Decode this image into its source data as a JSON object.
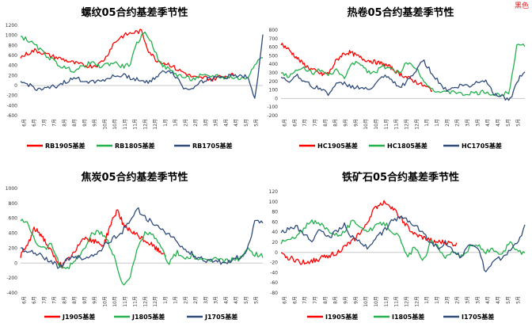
{
  "brand_text": "黑色",
  "palette": {
    "s1905": "#ff0000",
    "s1805": "#22b14c",
    "s1705": "#2f4b7c"
  },
  "chart_data": [
    {
      "type": "line",
      "title": "螺纹05合约基差季节性",
      "xticks": [
        "6月",
        "6月",
        "7月",
        "7月",
        "8月",
        "8月",
        "9月",
        "9月",
        "10月",
        "10月",
        "11月",
        "11月",
        "12月",
        "12月",
        "1月",
        "1月",
        "2月",
        "2月",
        "3月",
        "3月",
        "4月",
        "4月",
        "5月",
        "5月"
      ],
      "ylim": [
        -600,
        1200
      ],
      "yticks": [
        1200,
        1000,
        800,
        600,
        400,
        200,
        0,
        -200,
        -400,
        -600
      ],
      "legend_position": "bottom",
      "series": [
        {
          "name": "RB1905基差",
          "color": "#ff0000",
          "start": 0,
          "end": 0.88,
          "values": [
            560,
            640,
            700,
            660,
            600,
            560,
            520,
            470,
            430,
            400,
            390,
            420,
            560,
            820,
            960,
            1020,
            1060,
            1080,
            700,
            520,
            460,
            420,
            320,
            260,
            180,
            140,
            160,
            120,
            180,
            190,
            210
          ]
        },
        {
          "name": "RB1805基差",
          "color": "#22b14c",
          "start": 0,
          "end": 1.0,
          "values": [
            980,
            900,
            780,
            640,
            520,
            400,
            330,
            300,
            380,
            460,
            380,
            420,
            460,
            380,
            420,
            880,
            1080,
            760,
            420,
            320,
            220,
            160,
            120,
            190,
            180,
            200,
            160,
            170,
            140,
            150,
            460,
            560
          ]
        },
        {
          "name": "RB1705基差",
          "color": "#2f4b7c",
          "start": 0,
          "end": 1.0,
          "values": [
            60,
            20,
            -60,
            -80,
            -40,
            20,
            90,
            140,
            100,
            80,
            90,
            140,
            180,
            210,
            160,
            120,
            60,
            140,
            240,
            310,
            160,
            -80,
            -40,
            80,
            120,
            150,
            170,
            190,
            210,
            180,
            -300,
            1020
          ]
        }
      ]
    },
    {
      "type": "line",
      "title": "热卷05合约基差季节性",
      "xticks": [
        "6月",
        "6月",
        "7月",
        "7月",
        "8月",
        "8月",
        "9月",
        "9月",
        "10月",
        "10月",
        "11月",
        "11月",
        "12月",
        "12月",
        "1月",
        "1月",
        "2月",
        "2月",
        "3月",
        "3月",
        "4月",
        "4月",
        "5月",
        "5月"
      ],
      "ylim": [
        -200,
        800
      ],
      "yticks": [
        800,
        700,
        600,
        500,
        400,
        300,
        200,
        100,
        0,
        -100,
        -200
      ],
      "legend_position": "bottom",
      "series": [
        {
          "name": "HC1905基差",
          "color": "#ff0000",
          "start": 0,
          "end": 0.62,
          "values": [
            640,
            580,
            500,
            420,
            360,
            320,
            280,
            300,
            440,
            520,
            540,
            500,
            460,
            440,
            420,
            400,
            360,
            300,
            260,
            220,
            180,
            140,
            100
          ]
        },
        {
          "name": "HC1805基差",
          "color": "#22b14c",
          "start": 0,
          "end": 1.0,
          "values": [
            300,
            260,
            320,
            360,
            300,
            330,
            260,
            330,
            240,
            400,
            420,
            320,
            300,
            380,
            340,
            300,
            420,
            380,
            240,
            120,
            80,
            60,
            90,
            40,
            60,
            60,
            80,
            40,
            40,
            80,
            640,
            620
          ]
        },
        {
          "name": "HC1705基差",
          "color": "#2f4b7c",
          "start": 0,
          "end": 1.0,
          "values": [
            240,
            200,
            280,
            200,
            140,
            120,
            60,
            160,
            180,
            140,
            130,
            100,
            160,
            260,
            220,
            120,
            200,
            300,
            460,
            320,
            200,
            100,
            120,
            160,
            140,
            200,
            220,
            60,
            40,
            -40,
            200,
            320
          ]
        }
      ]
    },
    {
      "type": "line",
      "title": "焦炭05合约基差季节性",
      "xticks": [
        "6月",
        "6月",
        "7月",
        "7月",
        "8月",
        "8月",
        "9月",
        "9月",
        "10月",
        "10月",
        "11月",
        "11月",
        "12月",
        "12月",
        "1月",
        "1月",
        "2月",
        "2月",
        "3月",
        "3月",
        "4月",
        "4月",
        "5月",
        "5月"
      ],
      "ylim": [
        -400,
        1000
      ],
      "yticks": [
        1000,
        800,
        600,
        400,
        200,
        0,
        -200,
        -400
      ],
      "legend_position": "bottom",
      "series": [
        {
          "name": "J1905基差",
          "color": "#ff0000",
          "start": 0,
          "end": 0.6,
          "values": [
            100,
            240,
            460,
            380,
            220,
            60,
            -40,
            60,
            160,
            360,
            300,
            280,
            240,
            520,
            720,
            480,
            420,
            360,
            300,
            240,
            160,
            120
          ]
        },
        {
          "name": "J1805基差",
          "color": "#22b14c",
          "start": 0,
          "end": 1.0,
          "values": [
            580,
            520,
            280,
            200,
            260,
            -40,
            -60,
            40,
            160,
            380,
            420,
            340,
            80,
            -280,
            -200,
            200,
            420,
            360,
            200,
            0,
            140,
            60,
            100,
            20,
            40,
            60,
            30,
            40,
            60,
            180,
            120,
            100
          ]
        },
        {
          "name": "J1705基差",
          "color": "#2f4b7c",
          "start": 0,
          "end": 1.0,
          "values": [
            200,
            160,
            120,
            80,
            20,
            -60,
            40,
            100,
            60,
            80,
            160,
            260,
            340,
            420,
            580,
            720,
            620,
            520,
            460,
            380,
            280,
            180,
            120,
            60,
            30,
            20,
            0,
            40,
            80,
            180,
            560,
            560
          ]
        }
      ]
    },
    {
      "type": "line",
      "title": "铁矿石05合约基差季节性",
      "xticks": [
        "6月",
        "6月",
        "7月",
        "7月",
        "8月",
        "8月",
        "9月",
        "9月",
        "10月",
        "10月",
        "11月",
        "11月",
        "12月",
        "12月",
        "1月",
        "1月",
        "2月",
        "2月",
        "3月",
        "3月",
        "4月",
        "4月",
        "5月",
        "5月"
      ],
      "ylim": [
        -80,
        120
      ],
      "yticks": [
        120,
        100,
        80,
        60,
        40,
        20,
        0,
        -20,
        -40,
        -60,
        -80
      ],
      "legend_position": "bottom",
      "series": [
        {
          "name": "I1905基差",
          "color": "#ff0000",
          "start": 0,
          "end": 0.72,
          "values": [
            -5,
            -10,
            -15,
            -20,
            -18,
            -15,
            -10,
            -5,
            0,
            10,
            20,
            35,
            50,
            80,
            95,
            100,
            85,
            70,
            50,
            35,
            30,
            25,
            20,
            20,
            18,
            15
          ]
        },
        {
          "name": "I1805基差",
          "color": "#22b14c",
          "start": 0,
          "end": 1.0,
          "values": [
            20,
            25,
            30,
            50,
            60,
            55,
            45,
            35,
            40,
            60,
            55,
            40,
            50,
            60,
            45,
            30,
            -10,
            10,
            -20,
            20,
            10,
            -10,
            5,
            -10,
            10,
            15,
            0,
            5,
            -10,
            20,
            5,
            -5
          ]
        },
        {
          "name": "I1705基差",
          "color": "#2f4b7c",
          "start": 0,
          "end": 1.0,
          "values": [
            40,
            45,
            50,
            35,
            25,
            45,
            30,
            40,
            55,
            30,
            20,
            10,
            30,
            40,
            60,
            70,
            65,
            55,
            40,
            20,
            10,
            20,
            0,
            -10,
            20,
            10,
            -40,
            -20,
            -10,
            0,
            20,
            50
          ]
        }
      ]
    }
  ]
}
